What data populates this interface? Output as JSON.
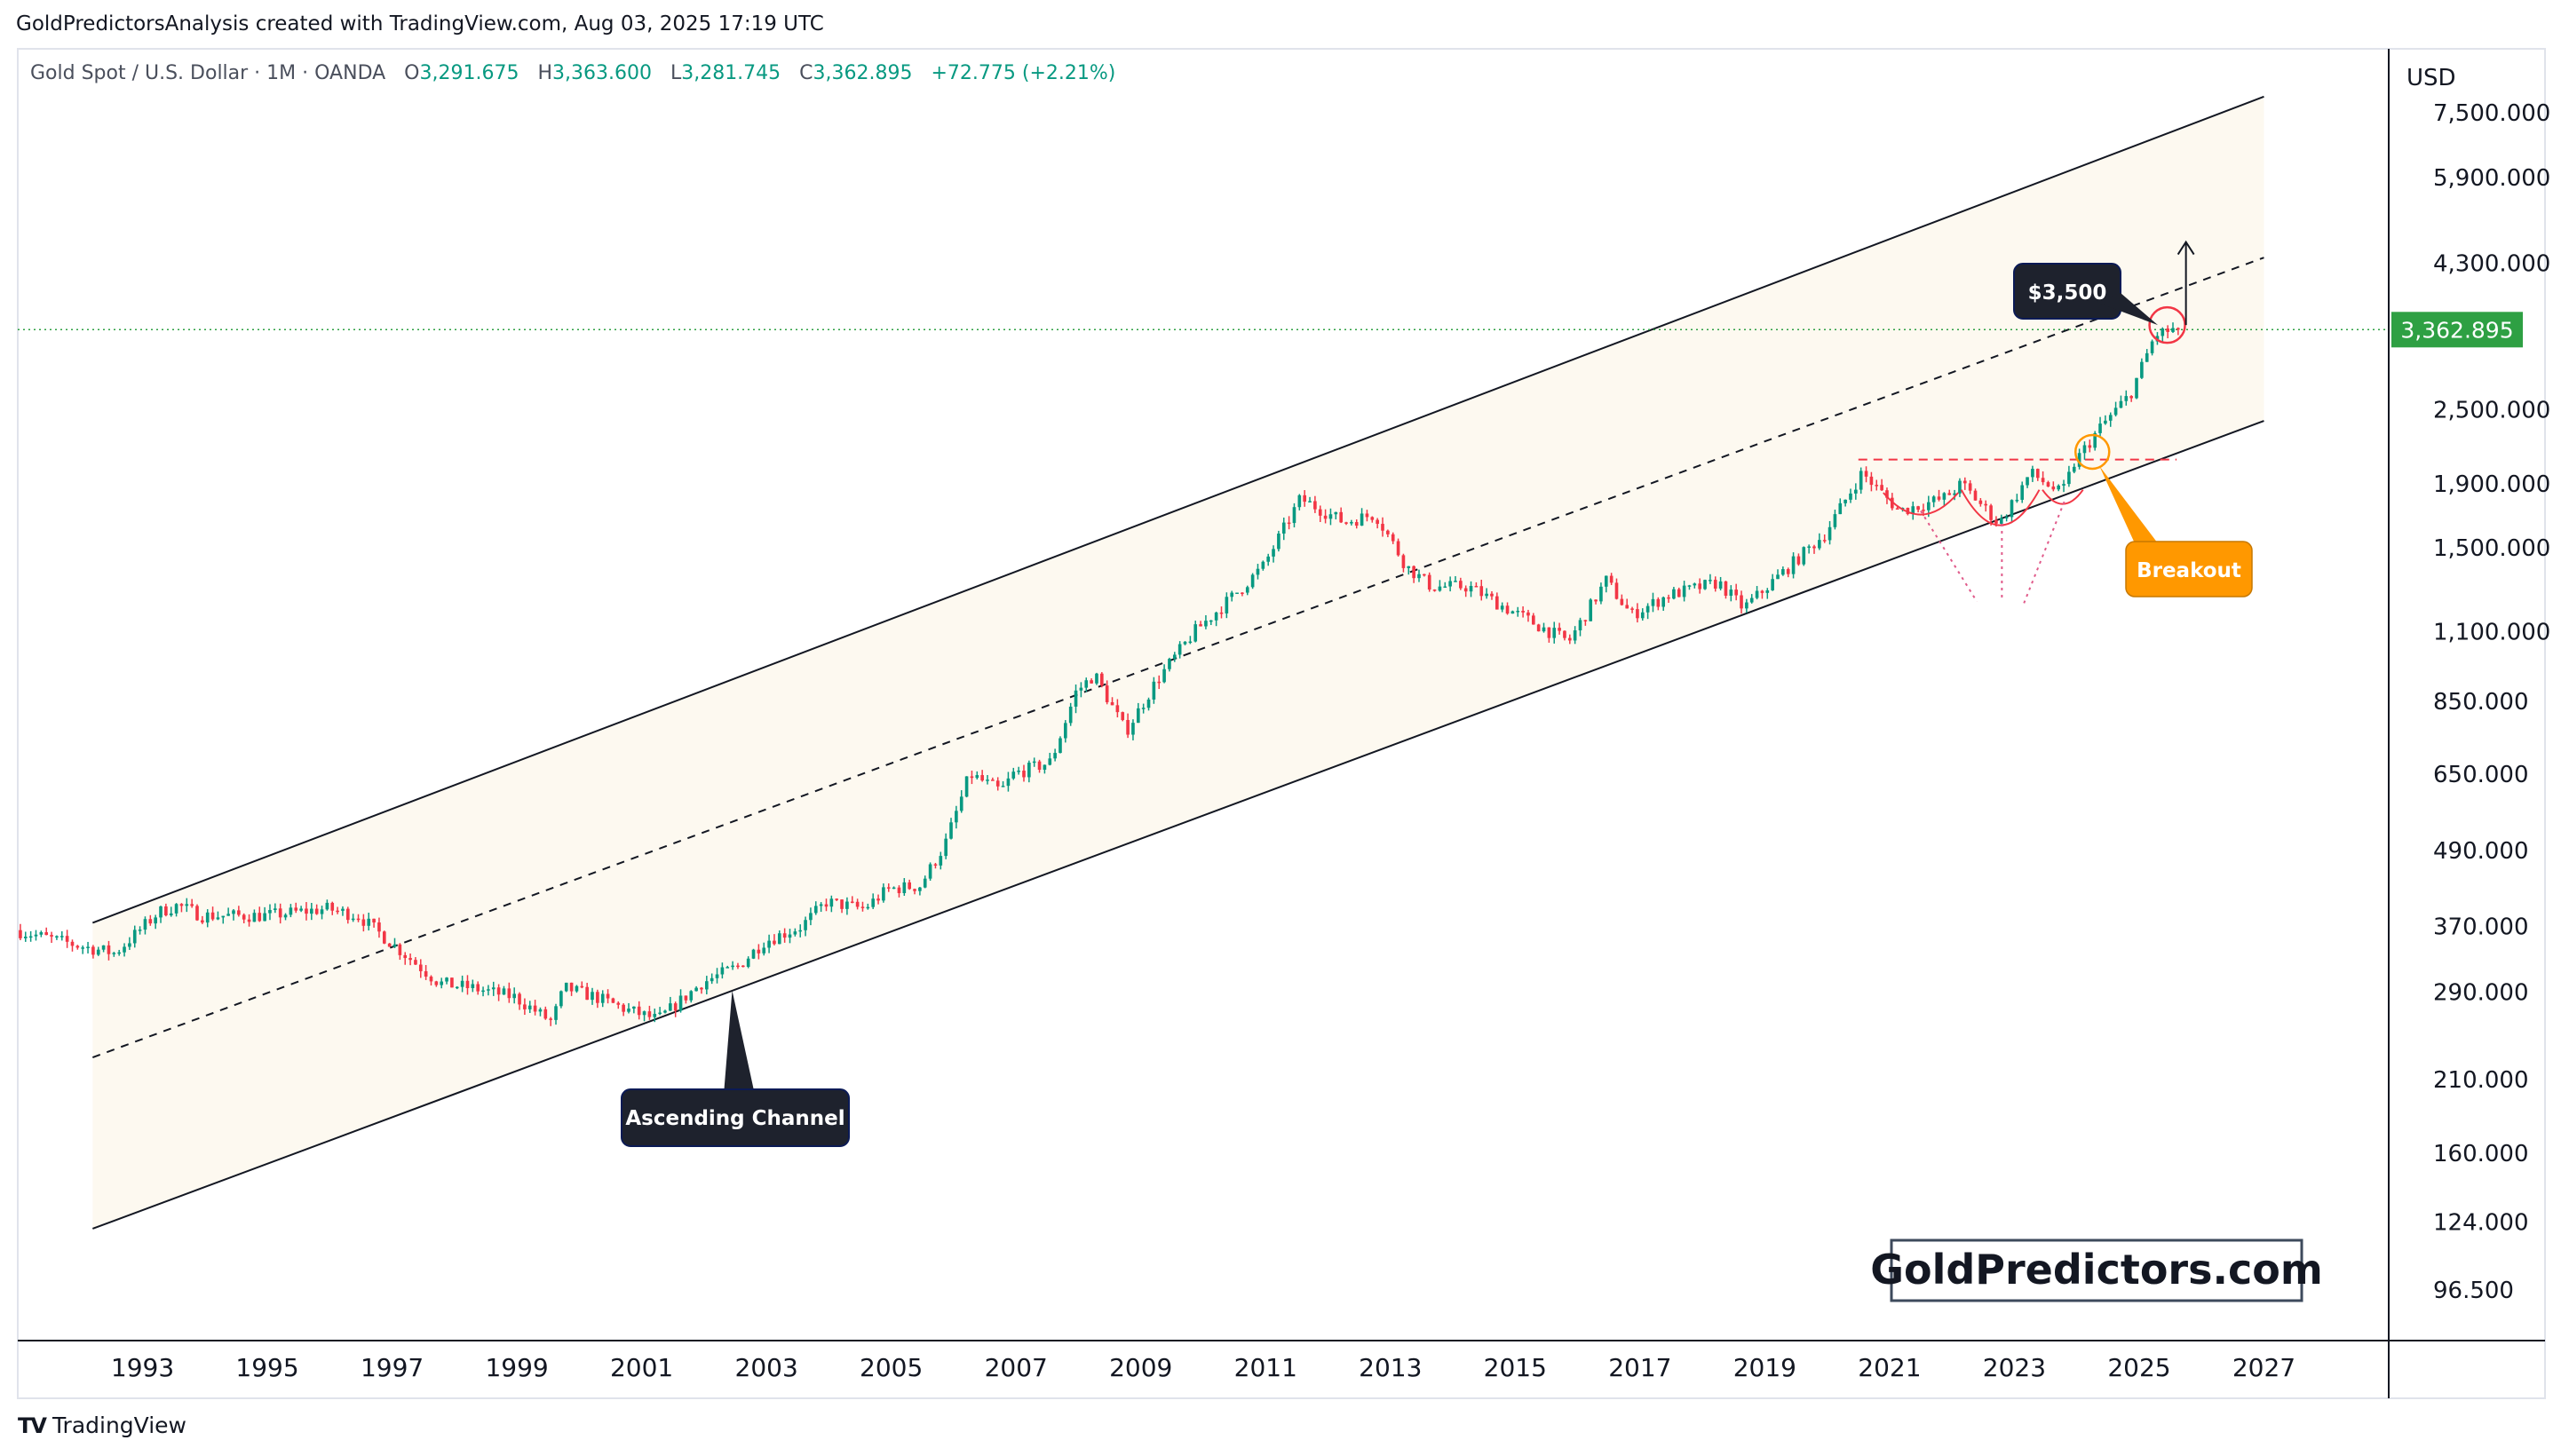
{
  "header": {
    "credit": "GoldPredictorsAnalysis created with TradingView.com, Aug 03, 2025 17:19 UTC"
  },
  "legend": {
    "symbol": "Gold Spot / U.S. Dollar · 1M · OANDA",
    "o_label": "O",
    "o_value": "3,291.675",
    "h_label": "H",
    "h_value": "3,363.600",
    "l_label": "L",
    "l_value": "3,281.745",
    "c_label": "C",
    "c_value": "3,362.895",
    "change": "+72.775 (+2.21%)"
  },
  "footer": {
    "brand": "TradingView",
    "logo": "TV"
  },
  "watermark": "GoldPredictors.com",
  "colors": {
    "up": "#089981",
    "down": "#f23645",
    "price_tag": "#2ea043",
    "breakout": "#ff9800",
    "channel_fill": "#fdf9f0"
  },
  "chart_data": {
    "type": "candlestick",
    "symbol": "Gold Spot / U.S. Dollar",
    "interval": "1M",
    "exchange": "OANDA",
    "currency": "USD",
    "scale": "log",
    "ylim": [
      80,
      9500
    ],
    "xlim": [
      1991.0,
      2029.0
    ],
    "y_ticks": [
      96.5,
      124,
      160,
      210,
      290,
      370,
      490,
      650,
      850,
      1100,
      1500,
      1900,
      2500,
      4300,
      5900,
      7500
    ],
    "y_tick_labels": [
      "96.500",
      "124.000",
      "160.000",
      "210.000",
      "290.000",
      "370.000",
      "490.000",
      "650.000",
      "850.000",
      "1,100.000",
      "1,500.000",
      "1,900.000",
      "2,500.000",
      "4,300.000",
      "5,900.000",
      "7,500.000"
    ],
    "x_ticks": [
      1993,
      1995,
      1997,
      1999,
      2001,
      2003,
      2005,
      2007,
      2009,
      2011,
      2013,
      2015,
      2017,
      2019,
      2021,
      2023,
      2025,
      2027
    ],
    "last_price": 3362.895,
    "last_price_label": "3,362.895",
    "price_path": [
      [
        1991.0,
        365
      ],
      [
        1992.0,
        345
      ],
      [
        1992.6,
        335
      ],
      [
        1993.3,
        390
      ],
      [
        1993.6,
        400
      ],
      [
        1994.0,
        385
      ],
      [
        1995.0,
        385
      ],
      [
        1996.0,
        395
      ],
      [
        1996.5,
        385
      ],
      [
        1997.0,
        350
      ],
      [
        1997.8,
        300
      ],
      [
        1998.3,
        295
      ],
      [
        1999.0,
        285
      ],
      [
        1999.6,
        260
      ],
      [
        1999.8,
        295
      ],
      [
        2000.3,
        285
      ],
      [
        2000.8,
        272
      ],
      [
        2001.3,
        262
      ],
      [
        2002.0,
        300
      ],
      [
        2002.6,
        320
      ],
      [
        2003.0,
        350
      ],
      [
        2003.6,
        370
      ],
      [
        2004.0,
        405
      ],
      [
        2004.6,
        395
      ],
      [
        2005.0,
        425
      ],
      [
        2005.5,
        430
      ],
      [
        2005.9,
        500
      ],
      [
        2006.3,
        650
      ],
      [
        2006.8,
        610
      ],
      [
        2007.0,
        650
      ],
      [
        2007.6,
        680
      ],
      [
        2008.0,
        880
      ],
      [
        2008.3,
        940
      ],
      [
        2008.8,
        760
      ],
      [
        2009.3,
        920
      ],
      [
        2009.9,
        1100
      ],
      [
        2010.5,
        1250
      ],
      [
        2011.0,
        1400
      ],
      [
        2011.6,
        1800
      ],
      [
        2012.3,
        1650
      ],
      [
        2012.8,
        1700
      ],
      [
        2013.3,
        1400
      ],
      [
        2013.7,
        1300
      ],
      [
        2014.3,
        1300
      ],
      [
        2014.9,
        1200
      ],
      [
        2015.9,
        1060
      ],
      [
        2016.5,
        1330
      ],
      [
        2016.9,
        1170
      ],
      [
        2017.5,
        1260
      ],
      [
        2018.3,
        1320
      ],
      [
        2018.7,
        1200
      ],
      [
        2019.5,
        1420
      ],
      [
        2020.0,
        1580
      ],
      [
        2020.6,
        1980
      ],
      [
        2021.2,
        1720
      ],
      [
        2021.9,
        1800
      ],
      [
        2022.2,
        1900
      ],
      [
        2022.8,
        1640
      ],
      [
        2023.3,
        1980
      ],
      [
        2023.8,
        1830
      ],
      [
        2024.0,
        2050
      ],
      [
        2024.4,
        2330
      ],
      [
        2024.9,
        2650
      ],
      [
        2025.3,
        3300
      ],
      [
        2025.6,
        3362.895
      ]
    ],
    "channel": {
      "upper": [
        [
          1992.2,
          375
        ],
        [
          2027.0,
          7960
        ]
      ],
      "middle": [
        [
          1992.2,
          228
        ],
        [
          2027.0,
          4390
        ]
      ],
      "lower": [
        [
          1992.2,
          121
        ],
        [
          2027.0,
          2400
        ]
      ]
    },
    "resistance_line": {
      "y": 2080,
      "x": [
        2020.5,
        2025.6
      ]
    },
    "annotations": {
      "target": "$3,500",
      "breakout": "Breakout",
      "channel": "Ascending Channel"
    }
  }
}
